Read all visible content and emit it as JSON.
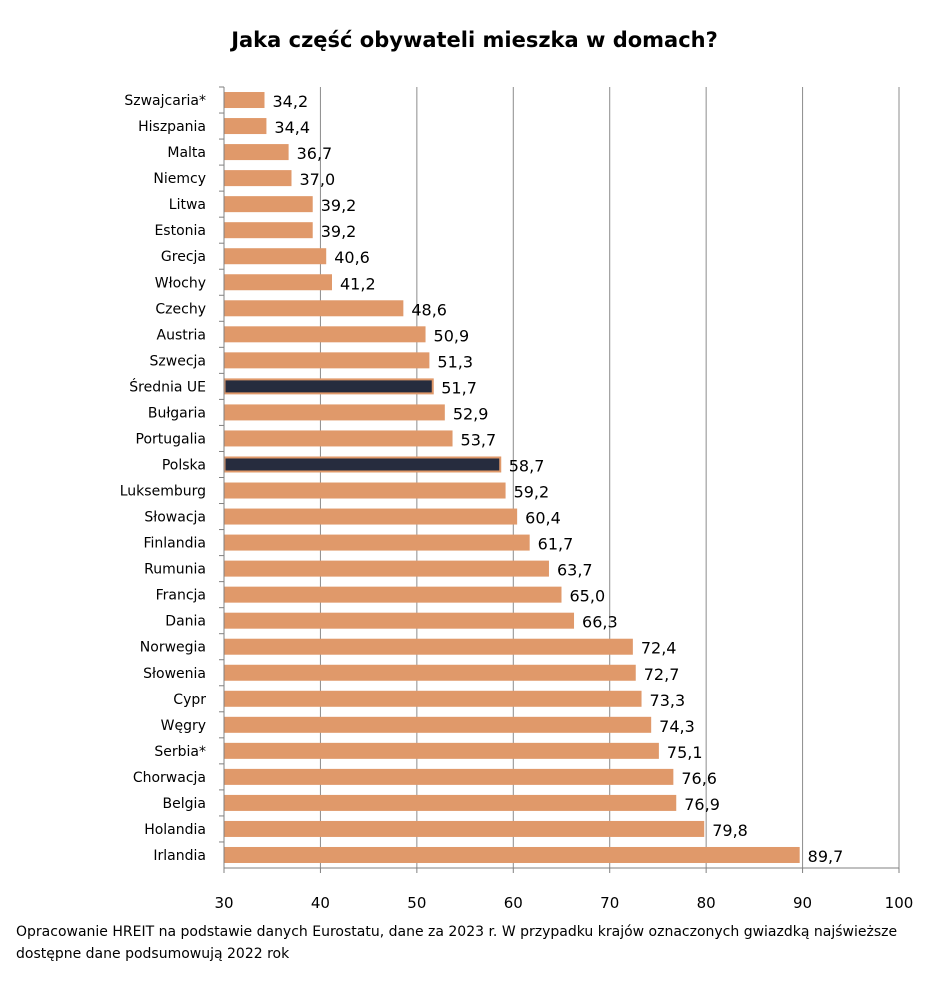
{
  "chart_data": {
    "type": "bar",
    "orientation": "horizontal",
    "title": "Jaka część obywateli mieszka w domach?",
    "categories": [
      "Szwajcaria*",
      "Hiszpania",
      "Malta",
      "Niemcy",
      "Litwa",
      "Estonia",
      "Grecja",
      "Włochy",
      "Czechy",
      "Austria",
      "Szwecja",
      "Średnia UE",
      "Bułgaria",
      "Portugalia",
      "Polska",
      "Luksemburg",
      "Słowacja",
      "Finlandia",
      "Rumunia",
      "Francja",
      "Dania",
      "Norwegia",
      "Słowenia",
      "Cypr",
      "Węgry",
      "Serbia*",
      "Chorwacja",
      "Belgia",
      "Holandia",
      "Irlandia"
    ],
    "values": [
      34.2,
      34.4,
      36.7,
      37.0,
      39.2,
      39.2,
      40.6,
      41.2,
      48.6,
      50.9,
      51.3,
      51.7,
      52.9,
      53.7,
      58.7,
      59.2,
      60.4,
      61.7,
      63.7,
      65.0,
      66.3,
      72.4,
      72.7,
      73.3,
      74.3,
      75.1,
      76.6,
      76.9,
      79.8,
      89.7
    ],
    "value_labels": [
      "34,2",
      "34,4",
      "36,7",
      "37,0",
      "39,2",
      "39,2",
      "40,6",
      "41,2",
      "48,6",
      "50,9",
      "51,3",
      "51,7",
      "52,9",
      "53,7",
      "58,7",
      "59,2",
      "60,4",
      "61,7",
      "63,7",
      "65,0",
      "66,3",
      "72,4",
      "72,7",
      "73,3",
      "74,3",
      "75,1",
      "76,6",
      "76,9",
      "79,8",
      "89,7"
    ],
    "highlighted": [
      "Średnia UE",
      "Polska"
    ],
    "xlim": [
      30,
      100
    ],
    "xticks": [
      30,
      40,
      50,
      60,
      70,
      80,
      90,
      100
    ],
    "xlabel": "",
    "ylabel": "",
    "grid": "vertical",
    "colors": {
      "bar": "#E0996A",
      "highlight": "#262C3E",
      "highlight_border": "#E0996A",
      "grid": "#8C8C8C",
      "axis": "#808080"
    }
  },
  "note": "Opracowanie HREIT na podstawie danych Eurostatu, dane za 2023 r. W przypadku krajów oznaczonych gwiazdką najświeższe dostępne dane podsumowują 2022 rok"
}
